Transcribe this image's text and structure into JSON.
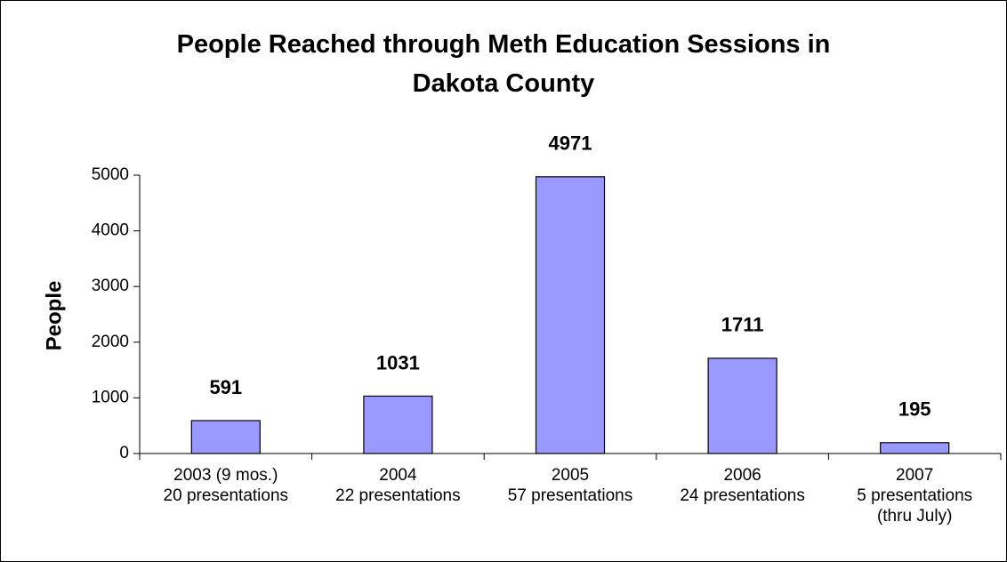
{
  "chart_data": {
    "type": "bar",
    "title": "People Reached through Meth Education Sessions in\nDakota County",
    "ylabel": "People",
    "categories": [
      "2003 (9 mos.)\n20 presentations",
      "2004\n22 presentations",
      "2005\n57 presentations",
      "2006\n24 presentations",
      "2007\n5 presentations\n(thru July)"
    ],
    "values": [
      591,
      1031,
      4971,
      1711,
      195
    ],
    "color": "#9999ff",
    "ylim": [
      0,
      5000
    ],
    "yticks": [
      0,
      1000,
      2000,
      3000,
      4000,
      5000
    ],
    "grid": false
  }
}
